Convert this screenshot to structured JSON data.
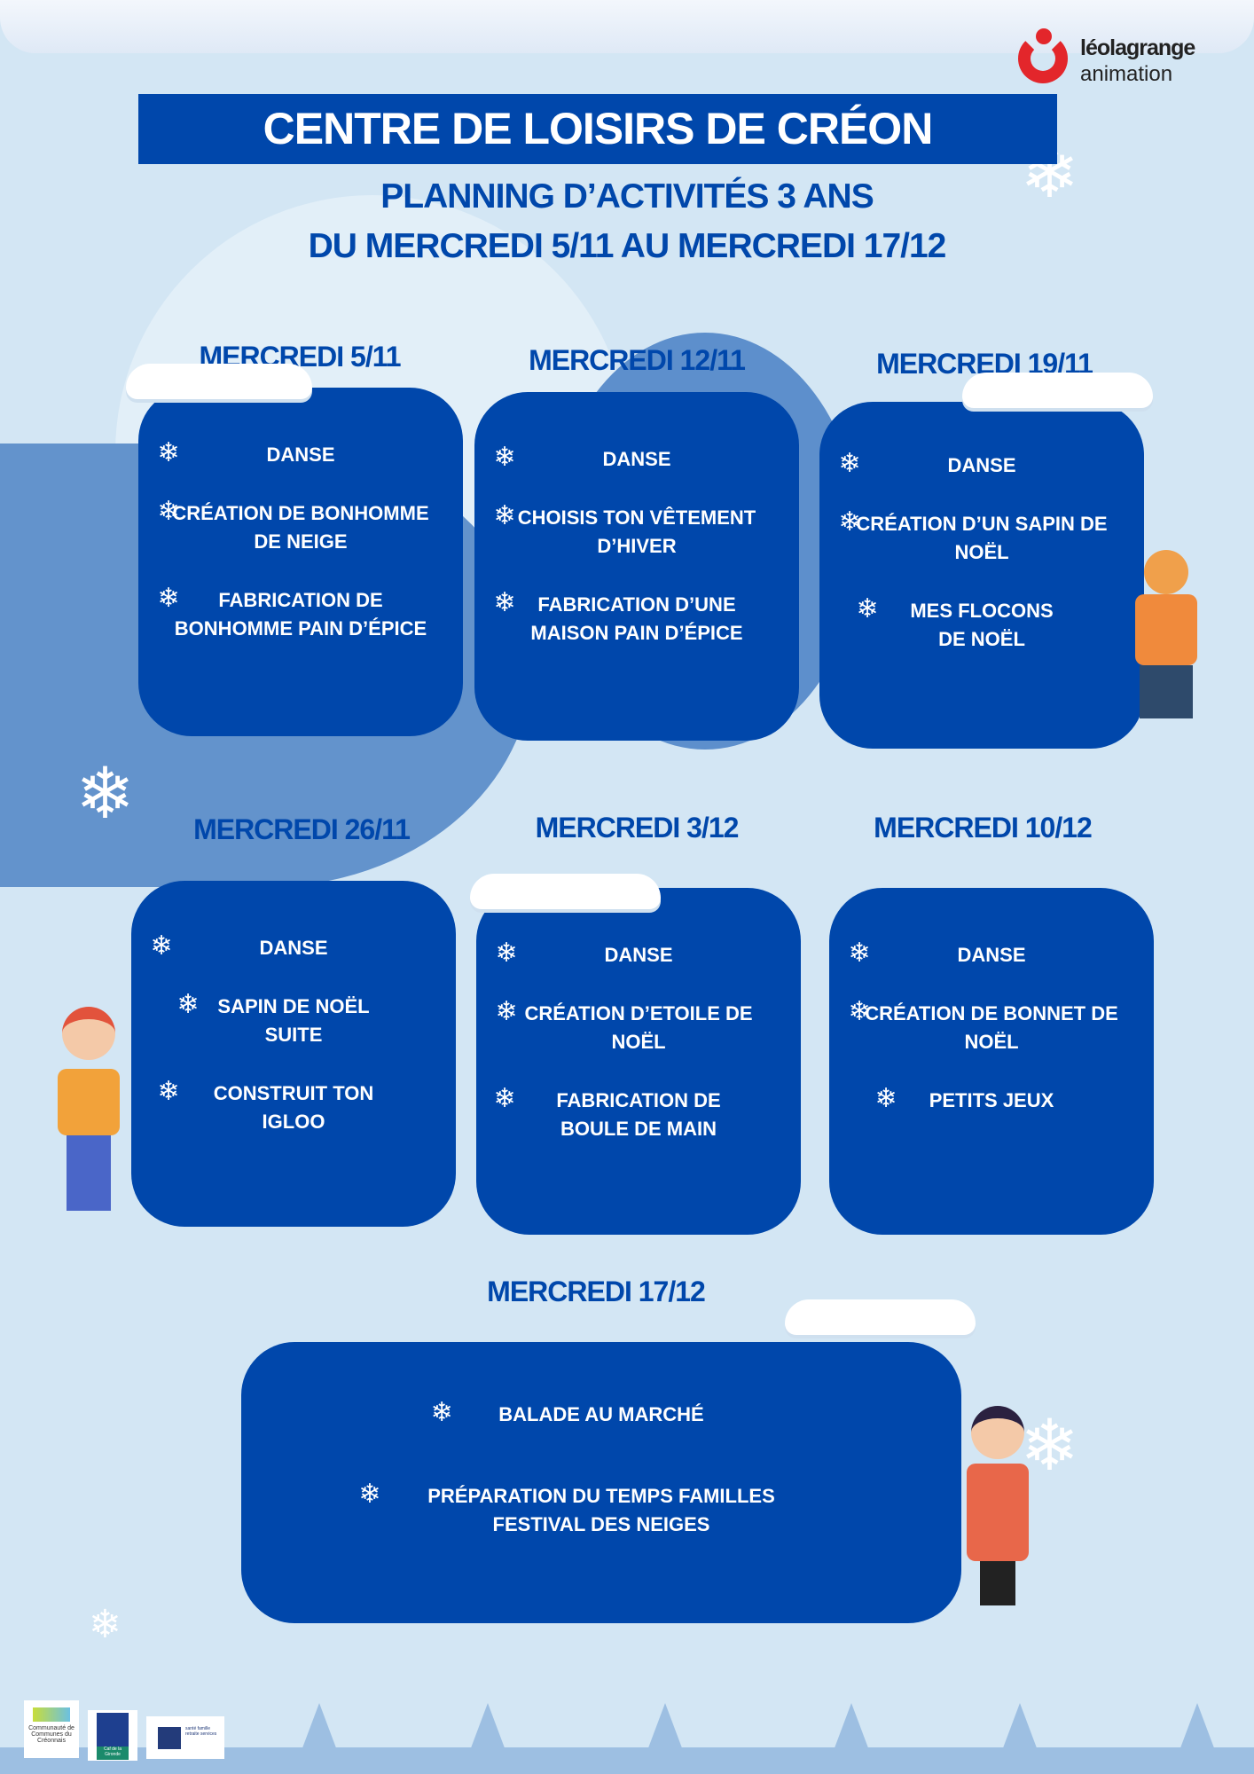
{
  "header": {
    "title": "CENTRE DE LOISIRS DE CRÉON",
    "subtitle_line1": "PLANNING D’ACTIVITÉS 3 ANS",
    "subtitle_line2": "DU MERCREDI 5/11 AU MERCREDI 17/12"
  },
  "logo": {
    "line1": "léolagrange",
    "line2": "animation"
  },
  "days": [
    {
      "title": "MERCREDI 5/11",
      "activities": [
        "DANSE",
        "CRÉATION DE BONHOMME DE NEIGE",
        "FABRICATION DE BONHOMME  PAIN D’ÉPICE"
      ]
    },
    {
      "title": "MERCREDI 12/11",
      "activities": [
        "DANSE",
        "CHOISIS TON VÊTEMENT D’HIVER",
        "FABRICATION D’UNE MAISON  PAIN D’ÉPICE"
      ]
    },
    {
      "title": "MERCREDI 19/11",
      "activities": [
        "DANSE",
        "CRÉATION D’UN SAPIN DE NOËL",
        "MES FLOCONS DE NOËL"
      ]
    },
    {
      "title": "MERCREDI 26/11",
      "activities": [
        "DANSE",
        "SAPIN DE NOËL SUITE",
        "CONSTRUIT TON IGLOO"
      ]
    },
    {
      "title": "MERCREDI 3/12",
      "activities": [
        "DANSE",
        "CRÉATION D’ETOILE DE NOËL",
        "FABRICATION DE BOULE DE MAIN"
      ]
    },
    {
      "title": "MERCREDI 10/12",
      "activities": [
        "DANSE",
        "CRÉATION DE BONNET DE NOËL",
        "PETITS JEUX"
      ]
    },
    {
      "title": "MERCREDI 17/12",
      "activities": [
        "BALADE  AU MARCHÉ",
        "PRÉPARATION DU TEMPS FAMILLES FESTIVAL DES NEIGES"
      ]
    }
  ],
  "sponsors": {
    "ccc": "Communauté de Communes du Créonnais",
    "caf": "Caf de la Gironde",
    "msa": "santé famille retraite services"
  },
  "colors": {
    "brand_blue": "#0047ab",
    "background": "#d3e6f4",
    "logo_red": "#e3262b"
  },
  "icons": {
    "activity_bullet": "snowflake-icon"
  }
}
